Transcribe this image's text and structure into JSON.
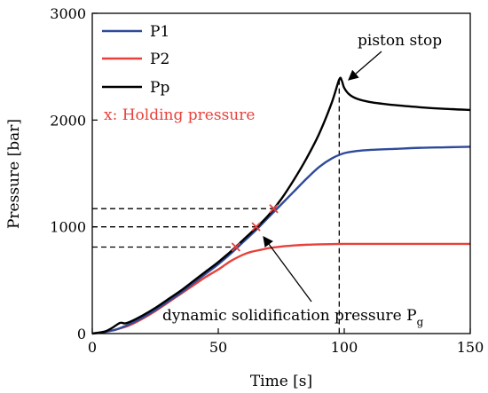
{
  "chart_data": {
    "type": "line",
    "xlabel": "Time [s]",
    "ylabel": "Pressure [bar]",
    "xlim": [
      0,
      150
    ],
    "ylim": [
      0,
      3000
    ],
    "xticks": [
      "0",
      "50",
      "100",
      "150"
    ],
    "yticks": [
      "0",
      "1000",
      "2000",
      "3000"
    ],
    "grid": false,
    "legend_position": "top-left",
    "series": [
      {
        "name": "P1",
        "color": "#2e4a9a",
        "x": [
          0,
          5,
          9,
          12,
          15,
          20,
          25,
          30,
          35,
          40,
          45,
          50,
          55,
          60,
          65,
          70,
          75,
          80,
          85,
          90,
          95,
          100,
          105,
          110,
          120,
          130,
          140,
          150
        ],
        "y": [
          0,
          15,
          35,
          60,
          90,
          150,
          220,
          300,
          380,
          470,
          560,
          650,
          750,
          860,
          970,
          1090,
          1210,
          1330,
          1450,
          1560,
          1640,
          1690,
          1710,
          1720,
          1730,
          1740,
          1745,
          1750
        ]
      },
      {
        "name": "P2",
        "color": "#e8413b",
        "x": [
          0,
          5,
          9,
          12,
          15,
          20,
          25,
          30,
          35,
          40,
          45,
          50,
          55,
          60,
          63,
          67,
          70,
          75,
          80,
          85,
          90,
          95,
          100,
          110,
          120,
          130,
          140,
          150
        ],
        "y": [
          0,
          15,
          35,
          55,
          80,
          140,
          210,
          290,
          370,
          450,
          530,
          600,
          680,
          740,
          765,
          785,
          800,
          815,
          825,
          832,
          836,
          838,
          840,
          840,
          840,
          840,
          840,
          840
        ]
      },
      {
        "name": "Pp",
        "color": "#000000",
        "x": [
          0,
          5,
          8,
          11,
          13,
          15,
          20,
          25,
          30,
          35,
          40,
          45,
          50,
          55,
          60,
          65,
          70,
          75,
          80,
          85,
          90,
          95,
          98,
          99,
          100,
          102,
          105,
          110,
          120,
          130,
          140,
          150
        ],
        "y": [
          0,
          20,
          55,
          100,
          95,
          110,
          170,
          240,
          320,
          400,
          490,
          580,
          670,
          770,
          880,
          990,
          1110,
          1260,
          1440,
          1640,
          1870,
          2160,
          2380,
          2370,
          2300,
          2240,
          2200,
          2170,
          2140,
          2120,
          2105,
          2095
        ]
      }
    ],
    "holding_points": [
      {
        "x": 57,
        "y": 810
      },
      {
        "x": 65,
        "y": 1000
      },
      {
        "x": 72,
        "y": 1170
      }
    ],
    "reference_lines": [
      {
        "y": 1170,
        "x_end": 72
      },
      {
        "y": 1000,
        "x_end": 65
      },
      {
        "y": 810,
        "x_end": 57
      }
    ],
    "piston_stop_time": 98,
    "annotations": {
      "piston_stop": "piston stop",
      "dynamic_pressure_main": "dynamic solidification pressure P",
      "dynamic_pressure_sub": "g",
      "holding_note": "x: Holding pressure",
      "holding_color": "#e8413b"
    }
  }
}
